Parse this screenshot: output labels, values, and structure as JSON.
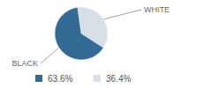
{
  "chart_data": {
    "type": "pie",
    "categories": [
      "BLACK",
      "WHITE"
    ],
    "values": [
      63.6,
      36.4
    ],
    "value_labels": [
      "63.6%",
      "36.4%"
    ],
    "colors": [
      "#336b94",
      "#d6dee6"
    ]
  }
}
